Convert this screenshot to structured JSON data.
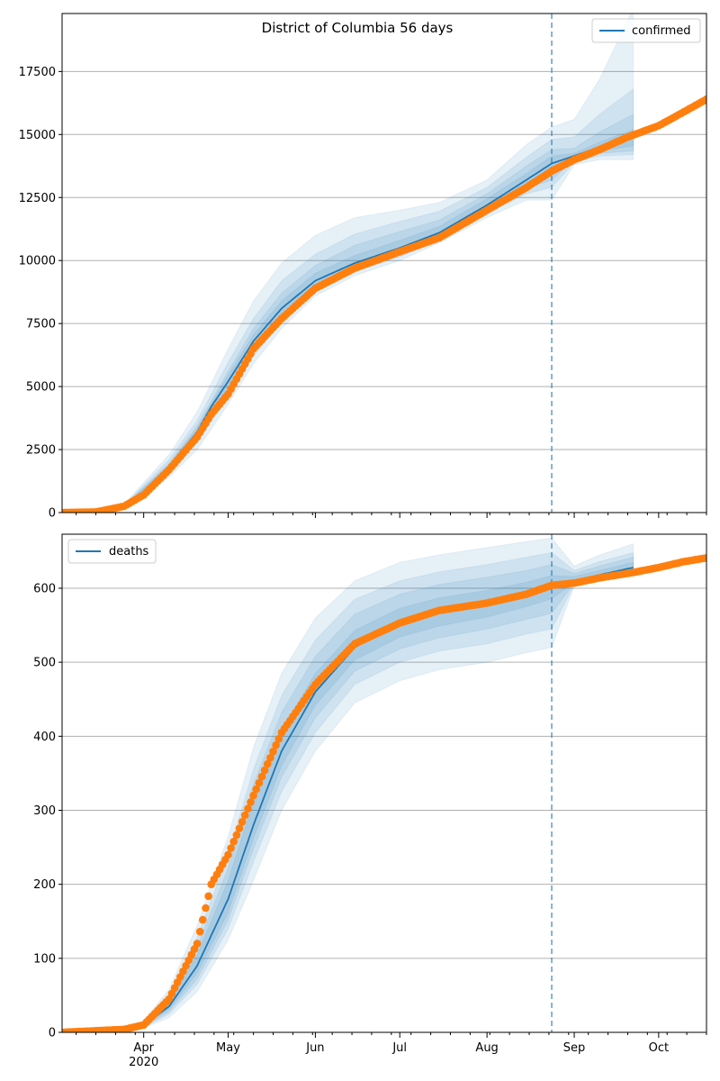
{
  "chart_data": [
    {
      "type": "line",
      "title": "District of Columbia 56 days",
      "xlabel": "",
      "ylabel": "",
      "xlim": [
        "2020-03-03",
        "2020-10-18"
      ],
      "ylim": [
        0,
        19800
      ],
      "yticks": [
        0,
        2500,
        5000,
        7500,
        10000,
        12500,
        15000,
        17500
      ],
      "ytick_labels": [
        "0",
        "2500",
        "5000",
        "7500",
        "10000",
        "12500",
        "15000",
        "17500"
      ],
      "grid": "horizontal",
      "legend_position": "top-right",
      "forecast_start": "2020-08-24",
      "series": [
        {
          "name": "confirmed",
          "kind": "fitted-line",
          "color": "#1f77b4",
          "x": [
            "2020-03-03",
            "2020-03-15",
            "2020-03-25",
            "2020-04-01",
            "2020-04-10",
            "2020-04-20",
            "2020-04-25",
            "2020-05-01",
            "2020-05-10",
            "2020-05-20",
            "2020-06-01",
            "2020-06-15",
            "2020-07-01",
            "2020-07-15",
            "2020-08-01",
            "2020-08-15",
            "2020-08-24",
            "2020-09-01",
            "2020-09-10",
            "2020-09-22"
          ],
          "y": [
            0,
            30,
            250,
            800,
            1800,
            3200,
            4200,
            5200,
            6800,
            8100,
            9200,
            9900,
            10500,
            11100,
            12200,
            13200,
            13850,
            14150,
            14500,
            14900
          ]
        },
        {
          "name": "",
          "kind": "observed-points",
          "color": "#ff7f0e",
          "x": [
            "2020-03-03",
            "2020-03-15",
            "2020-03-25",
            "2020-04-01",
            "2020-04-10",
            "2020-04-20",
            "2020-04-25",
            "2020-05-01",
            "2020-05-10",
            "2020-05-20",
            "2020-06-01",
            "2020-06-15",
            "2020-07-01",
            "2020-07-15",
            "2020-08-01",
            "2020-08-15",
            "2020-08-24",
            "2020-09-01",
            "2020-09-10",
            "2020-09-20",
            "2020-10-01",
            "2020-10-10",
            "2020-10-18"
          ],
          "y": [
            0,
            25,
            250,
            700,
            1700,
            3000,
            3900,
            4700,
            6500,
            7700,
            8900,
            9700,
            10350,
            10900,
            12000,
            12900,
            13550,
            14000,
            14400,
            14900,
            15350,
            15900,
            16400
          ]
        }
      ],
      "bands": {
        "color": "#1f77b4",
        "x": [
          "2020-03-25",
          "2020-04-10",
          "2020-04-20",
          "2020-05-01",
          "2020-05-10",
          "2020-05-20",
          "2020-06-01",
          "2020-06-15",
          "2020-07-01",
          "2020-07-15",
          "2020-08-01",
          "2020-08-15",
          "2020-08-24",
          "2020-09-01",
          "2020-09-10",
          "2020-09-22"
        ],
        "levels": [
          {
            "lo": [
              180,
              1400,
              2500,
              4300,
              5900,
              7300,
              8600,
              9400,
              10000,
              10700,
              11700,
              12400,
              12400,
              13800,
              14000,
              14000
            ],
            "hi": [
              330,
              2300,
              4000,
              6500,
              8400,
              9900,
              11000,
              11700,
              12000,
              12300,
              13200,
              14600,
              15300,
              15600,
              17200,
              20000
            ]
          },
          {
            "lo": [
              200,
              1550,
              2800,
              4600,
              6200,
              7600,
              8800,
              9550,
              10150,
              10800,
              11850,
              12650,
              12900,
              13900,
              14150,
              14200
            ],
            "hi": [
              300,
              2100,
              3650,
              5950,
              7700,
              9200,
              10250,
              11050,
              11550,
              11950,
              12900,
              14100,
              14800,
              14900,
              15800,
              16800
            ]
          },
          {
            "lo": [
              220,
              1650,
              2950,
              4800,
              6400,
              7800,
              8950,
              9650,
              10250,
              10900,
              11950,
              12850,
              13200,
              14000,
              14250,
              14350
            ],
            "hi": [
              280,
              1950,
              3450,
              5600,
              7300,
              8700,
              9800,
              10600,
              11150,
              11600,
              12650,
              13750,
              14400,
              14450,
              15100,
              15800
            ]
          },
          {
            "lo": [
              235,
              1720,
              3050,
              4950,
              6550,
              7950,
              9050,
              9750,
              10350,
              10980,
              12050,
              12980,
              13450,
              14050,
              14350,
              14550
            ],
            "hi": [
              265,
              1880,
              3350,
              5450,
              7050,
              8400,
              9500,
              10200,
              10800,
              11350,
              12450,
              13450,
              14150,
              14250,
              14700,
              15200
            ]
          }
        ]
      }
    },
    {
      "type": "line",
      "title": "",
      "xlabel": "",
      "ylabel": "",
      "xlim": [
        "2020-03-03",
        "2020-10-18"
      ],
      "ylim": [
        0,
        673
      ],
      "yticks": [
        0,
        100,
        200,
        300,
        400,
        500,
        600
      ],
      "ytick_labels": [
        "0",
        "100",
        "200",
        "300",
        "400",
        "500",
        "600"
      ],
      "xticks": [
        "2020-04-01",
        "2020-05-01",
        "2020-06-01",
        "2020-07-01",
        "2020-08-01",
        "2020-09-01",
        "2020-10-01"
      ],
      "xtick_labels": [
        "Apr",
        "May",
        "Jun",
        "Jul",
        "Aug",
        "Sep",
        "Oct"
      ],
      "xtick_sublabel": "2020",
      "grid": "horizontal",
      "legend_position": "top-left",
      "forecast_start": "2020-08-24",
      "series": [
        {
          "name": "deaths",
          "kind": "fitted-line",
          "color": "#1f77b4",
          "x": [
            "2020-03-03",
            "2020-03-25",
            "2020-04-01",
            "2020-04-10",
            "2020-04-20",
            "2020-05-01",
            "2020-05-10",
            "2020-05-20",
            "2020-06-01",
            "2020-06-15",
            "2020-07-01",
            "2020-07-15",
            "2020-08-01",
            "2020-08-15",
            "2020-08-24",
            "2020-09-01",
            "2020-09-10",
            "2020-09-22"
          ],
          "y": [
            0,
            3,
            10,
            35,
            90,
            180,
            280,
            380,
            460,
            520,
            555,
            570,
            580,
            595,
            603,
            610,
            618,
            628
          ]
        },
        {
          "name": "",
          "kind": "observed-points",
          "color": "#ff7f0e",
          "x": [
            "2020-03-03",
            "2020-03-25",
            "2020-04-01",
            "2020-04-10",
            "2020-04-20",
            "2020-04-25",
            "2020-05-01",
            "2020-05-10",
            "2020-05-20",
            "2020-06-01",
            "2020-06-15",
            "2020-07-01",
            "2020-07-15",
            "2020-08-01",
            "2020-08-15",
            "2020-08-24",
            "2020-09-01",
            "2020-09-10",
            "2020-09-20",
            "2020-10-01",
            "2020-10-10",
            "2020-10-18"
          ],
          "y": [
            0,
            4,
            10,
            45,
            120,
            200,
            240,
            320,
            405,
            470,
            525,
            553,
            570,
            580,
            592,
            604,
            607,
            614,
            620,
            628,
            636,
            641
          ]
        }
      ],
      "bands": {
        "color": "#1f77b4",
        "x": [
          "2020-03-25",
          "2020-04-01",
          "2020-04-10",
          "2020-04-20",
          "2020-05-01",
          "2020-05-10",
          "2020-05-20",
          "2020-06-01",
          "2020-06-15",
          "2020-07-01",
          "2020-07-15",
          "2020-08-01",
          "2020-08-15",
          "2020-08-24",
          "2020-09-01",
          "2020-09-10",
          "2020-09-22"
        ],
        "levels": [
          {
            "lo": [
              1,
              6,
              20,
              55,
              125,
              205,
              300,
              380,
              445,
              475,
              490,
              500,
              513,
              520,
              603,
              610,
              620
            ],
            "hi": [
              6,
              16,
              58,
              145,
              265,
              385,
              485,
              560,
              610,
              635,
              645,
              655,
              663,
              668,
              630,
              645,
              660
            ]
          },
          {
            "lo": [
              2,
              7,
              25,
              65,
              140,
              230,
              325,
              405,
              470,
              500,
              515,
              525,
              538,
              545,
              605,
              612,
              622
            ],
            "hi": [
              5,
              14,
              50,
              128,
              240,
              355,
              455,
              530,
              585,
              610,
              622,
              632,
              642,
              648,
              624,
              636,
              648
            ]
          },
          {
            "lo": [
              2.5,
              8,
              28,
              72,
              152,
              248,
              345,
              425,
              488,
              518,
              533,
              545,
              558,
              566,
              607,
              614,
              624
            ],
            "hi": [
              4.5,
              13,
              45,
              115,
              222,
              335,
              432,
              508,
              565,
              592,
              605,
              615,
              624,
              632,
              620,
              630,
              642
            ]
          },
          {
            "lo": [
              3,
              9,
              31,
              80,
              162,
              262,
              360,
              442,
              503,
              534,
              549,
              561,
              575,
              586,
              608,
              616,
              626
            ],
            "hi": [
              4,
              12,
              40,
              105,
              205,
              312,
              408,
              485,
              543,
              573,
              587,
              597,
              608,
              617,
              616,
              624,
              635
            ]
          }
        ]
      }
    }
  ]
}
